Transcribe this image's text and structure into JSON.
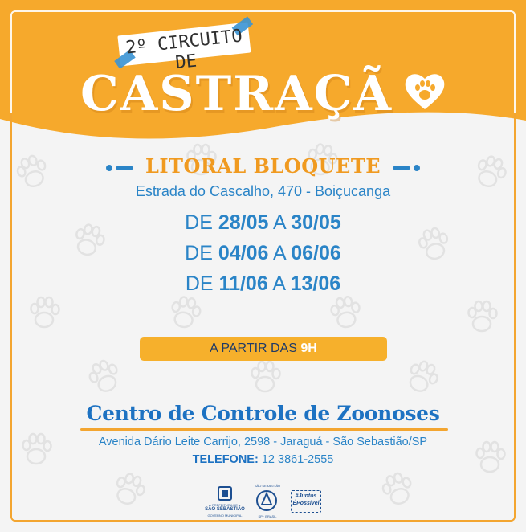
{
  "header": {
    "banner_text": "2º CIRCUITO DE",
    "main_title": "CASTRAÇÃ"
  },
  "location": {
    "title": "LITORAL BLOQUETE",
    "address": "Estrada do Cascalho, 470 - Boiçucanga"
  },
  "dates": [
    {
      "prefix": "DE",
      "start": "28/05",
      "sep": "A",
      "end": "30/05"
    },
    {
      "prefix": "DE",
      "start": "04/06",
      "sep": "A",
      "end": "06/06"
    },
    {
      "prefix": "DE",
      "start": "11/06",
      "sep": "A",
      "end": "13/06"
    }
  ],
  "time": {
    "prefix": "A PARTIR DAS",
    "hour": "9H"
  },
  "center": {
    "name": "Centro de Controle de Zoonoses",
    "address": "Avenida Dário Leite Carrijo, 2598 - Jaraguá - São Sebastião/SP",
    "phone_label": "TELEFONE:",
    "phone_number": "12 3861-2555"
  },
  "logos": {
    "prefeitura_small": "PREFEITURA DE",
    "prefeitura_name": "SÃO SEBASTIÃO",
    "prefeitura_sub": "GOVERNO MUNICIPAL",
    "state_small": "SÃO SEBASTIÃO",
    "state_sub": "SP · BRASIL",
    "slogan_line1": "#Juntos",
    "slogan_line2": "ÉPossível"
  },
  "colors": {
    "orange": "#f6a92c",
    "blue": "#2a84c7",
    "dark_blue": "#1d72c2",
    "pill": "#f6b02c",
    "background": "#f4f4f4"
  }
}
